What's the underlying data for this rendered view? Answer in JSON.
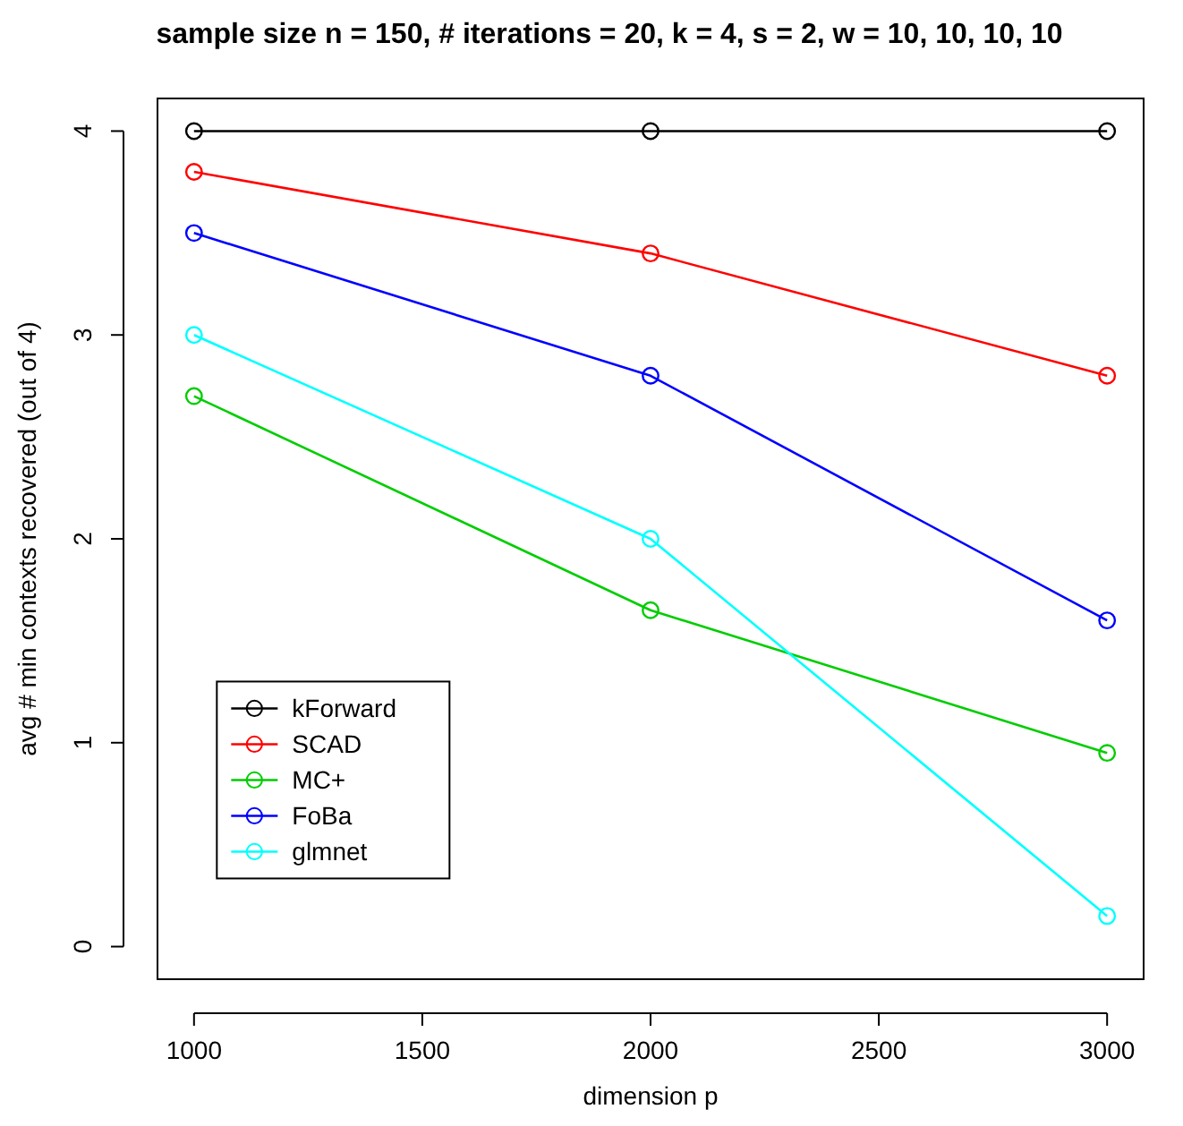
{
  "chart_data": {
    "type": "line",
    "title": "sample size n = 150, # iterations = 20, k = 4, s = 2, w = 10, 10, 10, 10",
    "xlabel": "dimension p",
    "ylabel": "avg # min contexts recovered (out of 4)",
    "x": [
      1000,
      2000,
      3000
    ],
    "series": [
      {
        "name": "kForward",
        "color": "#000000",
        "values": [
          4,
          4,
          4
        ]
      },
      {
        "name": "SCAD",
        "color": "#ff0000",
        "values": [
          3.8,
          3.4,
          2.8
        ]
      },
      {
        "name": "MC+",
        "color": "#00cd00",
        "values": [
          2.7,
          1.65,
          0.95
        ]
      },
      {
        "name": "FoBa",
        "color": "#0000ff",
        "values": [
          3.5,
          2.8,
          1.6
        ]
      },
      {
        "name": "glmnet",
        "color": "#00ffff",
        "values": [
          3.0,
          2.0,
          0.15
        ]
      }
    ],
    "xlim": [
      920,
      3080
    ],
    "xticks": [
      1000,
      1500,
      2000,
      2500,
      3000
    ],
    "ylim": [
      -0.16,
      4.16
    ],
    "yticks": [
      0,
      1,
      2,
      3,
      4
    ],
    "grid": false,
    "legend": "bottom left",
    "marker": "circle",
    "line_style": "solid"
  }
}
